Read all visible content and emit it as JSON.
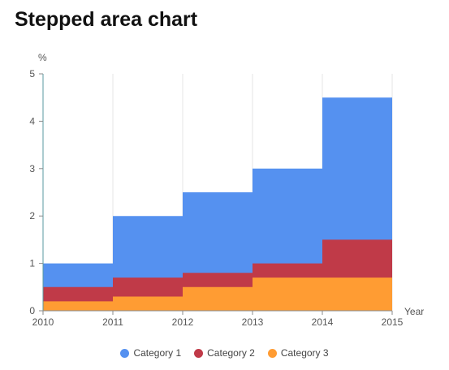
{
  "chart_data": {
    "type": "area",
    "step": true,
    "title": "Stepped area chart",
    "ylabel": "%",
    "xlabel": "Year",
    "categories": [
      "2010",
      "2011",
      "2012",
      "2013",
      "2014"
    ],
    "x_ticks": [
      "2010",
      "2011",
      "2012",
      "2013",
      "2014",
      "2015"
    ],
    "y_ticks": [
      "0",
      "1",
      "2",
      "3",
      "4",
      "5"
    ],
    "ylim": [
      0,
      5
    ],
    "stacked": true,
    "grid": true,
    "legend_position": "bottom",
    "series": [
      {
        "name": "Category 1",
        "color": "#5591f0",
        "values": [
          0.5,
          1.3,
          1.7,
          2.0,
          3.0
        ]
      },
      {
        "name": "Category 2",
        "color": "#c03a48",
        "values": [
          0.3,
          0.4,
          0.3,
          0.3,
          0.8
        ]
      },
      {
        "name": "Category 3",
        "color": "#ff9c33",
        "values": [
          0.2,
          0.3,
          0.5,
          0.7,
          0.7
        ]
      }
    ]
  }
}
